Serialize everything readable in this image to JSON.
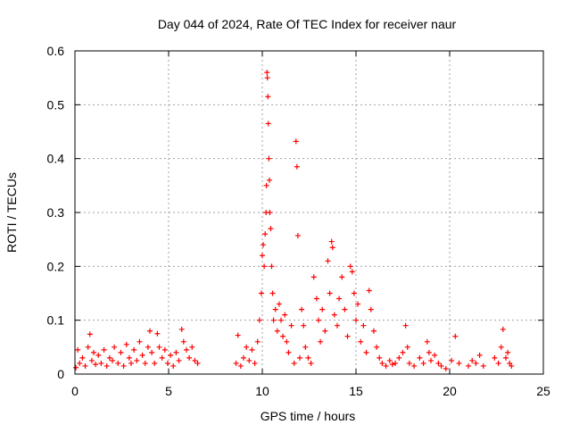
{
  "chart_data": {
    "type": "scatter",
    "title": "Day 044 of 2024, Rate Of TEC Index for receiver naur",
    "xlabel": "GPS time / hours",
    "ylabel": "ROTI / TECUs",
    "xlim": [
      0,
      25
    ],
    "ylim": [
      0,
      0.6
    ],
    "xticks": [
      "0",
      "5",
      "10",
      "15",
      "20",
      "25"
    ],
    "yticks": [
      "0",
      "0.1",
      "0.2",
      "0.3",
      "0.4",
      "0.5",
      "0.6"
    ],
    "grid": true,
    "marker": "+",
    "series_color": "#ff0000",
    "points": [
      [
        0.05,
        0.012
      ],
      [
        0.15,
        0.045
      ],
      [
        0.25,
        0.02
      ],
      [
        0.4,
        0.03
      ],
      [
        0.55,
        0.015
      ],
      [
        0.7,
        0.05
      ],
      [
        0.8,
        0.074
      ],
      [
        0.9,
        0.025
      ],
      [
        1.0,
        0.04
      ],
      [
        1.1,
        0.018
      ],
      [
        1.25,
        0.035
      ],
      [
        1.4,
        0.02
      ],
      [
        1.55,
        0.045
      ],
      [
        1.7,
        0.015
      ],
      [
        1.85,
        0.03
      ],
      [
        2.0,
        0.025
      ],
      [
        2.1,
        0.05
      ],
      [
        2.3,
        0.02
      ],
      [
        2.45,
        0.04
      ],
      [
        2.6,
        0.015
      ],
      [
        2.75,
        0.055
      ],
      [
        2.9,
        0.03
      ],
      [
        3.0,
        0.02
      ],
      [
        3.15,
        0.045
      ],
      [
        3.3,
        0.025
      ],
      [
        3.45,
        0.06
      ],
      [
        3.6,
        0.035
      ],
      [
        3.75,
        0.02
      ],
      [
        3.9,
        0.05
      ],
      [
        4.0,
        0.08
      ],
      [
        4.1,
        0.04
      ],
      [
        4.25,
        0.02
      ],
      [
        4.4,
        0.075
      ],
      [
        4.5,
        0.05
      ],
      [
        4.65,
        0.03
      ],
      [
        4.8,
        0.045
      ],
      [
        4.95,
        0.02
      ],
      [
        5.1,
        0.035
      ],
      [
        5.25,
        0.015
      ],
      [
        5.4,
        0.04
      ],
      [
        5.55,
        0.025
      ],
      [
        5.7,
        0.083
      ],
      [
        5.8,
        0.06
      ],
      [
        5.95,
        0.045
      ],
      [
        6.1,
        0.03
      ],
      [
        6.25,
        0.05
      ],
      [
        6.4,
        0.025
      ],
      [
        6.55,
        0.02
      ],
      [
        8.6,
        0.02
      ],
      [
        8.7,
        0.072
      ],
      [
        8.85,
        0.015
      ],
      [
        9.0,
        0.03
      ],
      [
        9.15,
        0.05
      ],
      [
        9.3,
        0.025
      ],
      [
        9.45,
        0.045
      ],
      [
        9.6,
        0.02
      ],
      [
        9.75,
        0.06
      ],
      [
        9.85,
        0.1
      ],
      [
        9.95,
        0.15
      ],
      [
        10.0,
        0.22
      ],
      [
        10.05,
        0.24
      ],
      [
        10.1,
        0.2
      ],
      [
        10.15,
        0.26
      ],
      [
        10.2,
        0.3
      ],
      [
        10.22,
        0.35
      ],
      [
        10.25,
        0.56
      ],
      [
        10.27,
        0.55
      ],
      [
        10.3,
        0.515
      ],
      [
        10.32,
        0.465
      ],
      [
        10.35,
        0.4
      ],
      [
        10.38,
        0.36
      ],
      [
        10.4,
        0.3
      ],
      [
        10.45,
        0.27
      ],
      [
        10.5,
        0.2
      ],
      [
        10.55,
        0.15
      ],
      [
        10.6,
        0.1
      ],
      [
        10.7,
        0.12
      ],
      [
        10.8,
        0.08
      ],
      [
        10.9,
        0.13
      ],
      [
        11.0,
        0.1
      ],
      [
        11.1,
        0.07
      ],
      [
        11.2,
        0.11
      ],
      [
        11.3,
        0.06
      ],
      [
        11.4,
        0.04
      ],
      [
        11.55,
        0.09
      ],
      [
        11.7,
        0.02
      ],
      [
        11.8,
        0.432
      ],
      [
        11.85,
        0.385
      ],
      [
        11.9,
        0.257
      ],
      [
        12.0,
        0.03
      ],
      [
        12.1,
        0.12
      ],
      [
        12.2,
        0.09
      ],
      [
        12.3,
        0.05
      ],
      [
        12.45,
        0.03
      ],
      [
        12.6,
        0.02
      ],
      [
        12.75,
        0.18
      ],
      [
        12.9,
        0.14
      ],
      [
        13.0,
        0.1
      ],
      [
        13.1,
        0.06
      ],
      [
        13.2,
        0.12
      ],
      [
        13.35,
        0.08
      ],
      [
        13.5,
        0.21
      ],
      [
        13.6,
        0.15
      ],
      [
        13.7,
        0.246
      ],
      [
        13.75,
        0.235
      ],
      [
        13.85,
        0.11
      ],
      [
        14.0,
        0.09
      ],
      [
        14.1,
        0.14
      ],
      [
        14.25,
        0.18
      ],
      [
        14.4,
        0.12
      ],
      [
        14.55,
        0.07
      ],
      [
        14.7,
        0.2
      ],
      [
        14.8,
        0.19
      ],
      [
        14.9,
        0.15
      ],
      [
        15.0,
        0.1
      ],
      [
        15.1,
        0.13
      ],
      [
        15.25,
        0.06
      ],
      [
        15.4,
        0.09
      ],
      [
        15.55,
        0.04
      ],
      [
        15.7,
        0.155
      ],
      [
        15.8,
        0.12
      ],
      [
        15.95,
        0.08
      ],
      [
        16.1,
        0.05
      ],
      [
        16.25,
        0.03
      ],
      [
        16.4,
        0.02
      ],
      [
        16.6,
        0.015
      ],
      [
        16.8,
        0.025
      ],
      [
        16.95,
        0.018
      ],
      [
        17.1,
        0.02
      ],
      [
        17.3,
        0.03
      ],
      [
        17.5,
        0.04
      ],
      [
        17.65,
        0.09
      ],
      [
        17.75,
        0.05
      ],
      [
        17.85,
        0.02
      ],
      [
        18.1,
        0.015
      ],
      [
        18.4,
        0.03
      ],
      [
        18.6,
        0.02
      ],
      [
        18.8,
        0.06
      ],
      [
        18.9,
        0.04
      ],
      [
        19.0,
        0.025
      ],
      [
        19.2,
        0.035
      ],
      [
        19.4,
        0.02
      ],
      [
        19.55,
        0.015
      ],
      [
        19.8,
        0.01
      ],
      [
        20.1,
        0.025
      ],
      [
        20.3,
        0.07
      ],
      [
        20.5,
        0.02
      ],
      [
        21.0,
        0.015
      ],
      [
        21.2,
        0.025
      ],
      [
        21.4,
        0.02
      ],
      [
        21.6,
        0.035
      ],
      [
        21.8,
        0.015
      ],
      [
        22.4,
        0.03
      ],
      [
        22.6,
        0.02
      ],
      [
        22.75,
        0.05
      ],
      [
        22.85,
        0.083
      ],
      [
        23.0,
        0.03
      ],
      [
        23.1,
        0.04
      ],
      [
        23.2,
        0.02
      ],
      [
        23.3,
        0.015
      ]
    ]
  }
}
